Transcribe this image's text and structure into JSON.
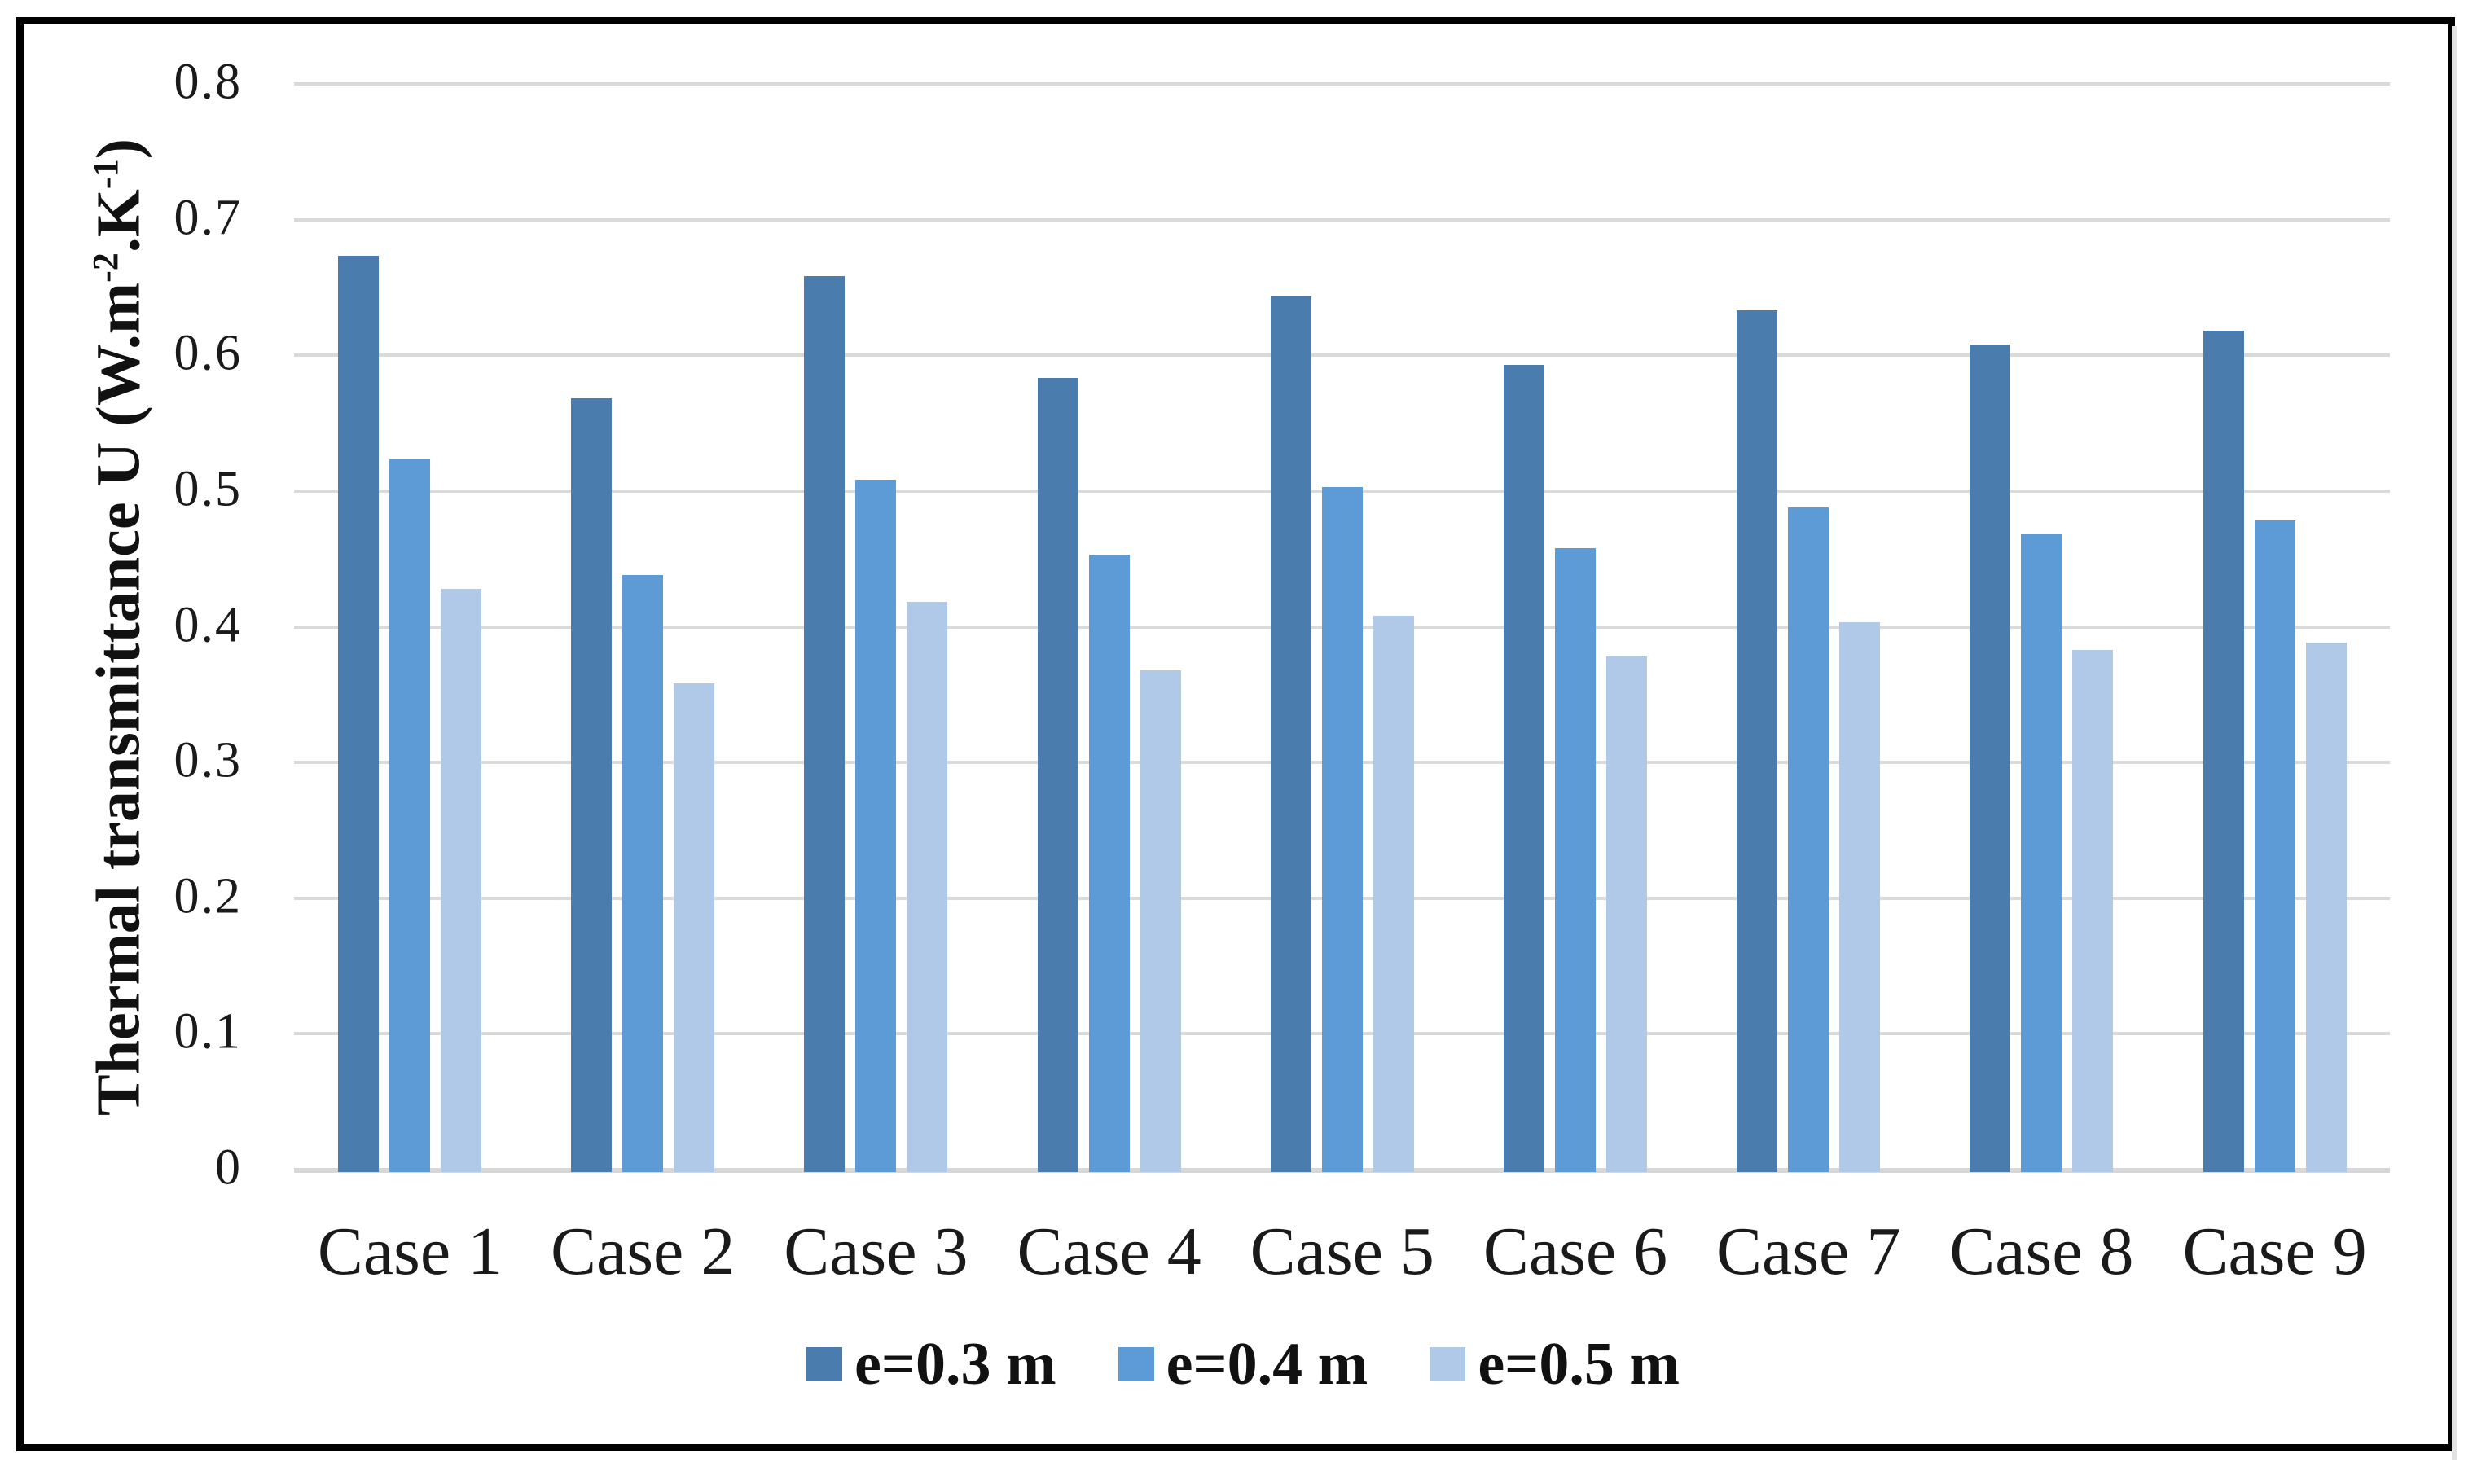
{
  "figure": {
    "background": "#ffffff",
    "border_color": "#000000"
  },
  "chart_data": {
    "type": "bar",
    "title": "",
    "categories": [
      "Case 1",
      "Case 2",
      "Case 3",
      "Case 4",
      "Case 5",
      "Case 6",
      "Case 7",
      "Case 8",
      "Case 9"
    ],
    "series": [
      {
        "name": "e=0.3 m",
        "color": "#4a7cae",
        "values": [
          0.675,
          0.57,
          0.66,
          0.585,
          0.645,
          0.595,
          0.635,
          0.61,
          0.62
        ]
      },
      {
        "name": "e=0.4 m",
        "color": "#5c9bd6",
        "values": [
          0.525,
          0.44,
          0.51,
          0.455,
          0.505,
          0.46,
          0.49,
          0.47,
          0.48
        ]
      },
      {
        "name": "e=0.5 m",
        "color": "#b1c9e8",
        "values": [
          0.43,
          0.36,
          0.42,
          0.37,
          0.41,
          0.38,
          0.405,
          0.385,
          0.39
        ]
      }
    ],
    "ylabel": "Thermal transmittance U (W.m-2.K-1)",
    "ylabel_parts": {
      "p1": "Thermal transmittance U (W.m",
      "sup1": "-2",
      "p2": ".K",
      "sup2": "-1",
      "p3": ")"
    },
    "xlabel": "",
    "ylim": [
      0,
      0.8
    ],
    "yticks": [
      0,
      0.1,
      0.2,
      0.3,
      0.4,
      0.5,
      0.6,
      0.7,
      0.8
    ],
    "ytick_labels": [
      "0",
      "0.1",
      "0.2",
      "0.3",
      "0.4",
      "0.5",
      "0.6",
      "0.7",
      "0.8"
    ],
    "grid": "horizontal",
    "gridline_color": "#dadada",
    "axis_line_color": "#d7d7d7",
    "tick_text_color": "#1a1a1a",
    "legend_position": "bottom"
  }
}
